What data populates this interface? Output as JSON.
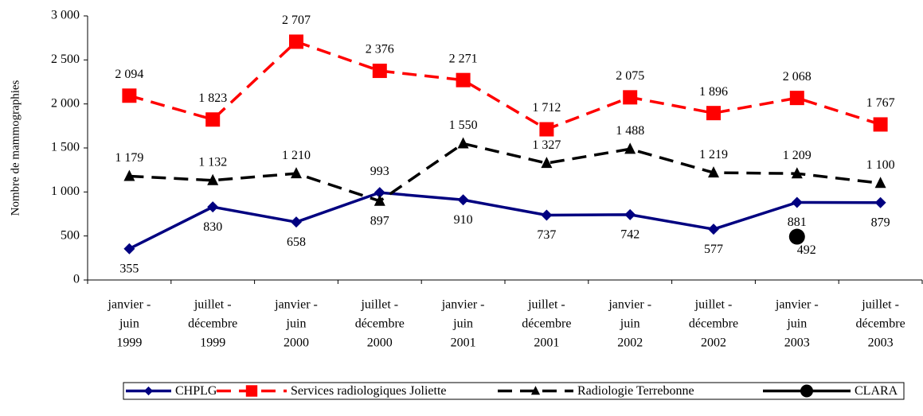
{
  "chart_data": {
    "type": "line",
    "y_label": "Nombre de mammographies",
    "categories": [
      [
        "janvier -",
        "juin",
        "1999"
      ],
      [
        "juillet -",
        "décembre",
        "1999"
      ],
      [
        "janvier -",
        "juin",
        "2000"
      ],
      [
        "juillet -",
        "décembre",
        "2000"
      ],
      [
        "janvier -",
        "juin",
        "2001"
      ],
      [
        "juillet -",
        "décembre",
        "2001"
      ],
      [
        "janvier -",
        "juin",
        "2002"
      ],
      [
        "juillet -",
        "décembre",
        "2002"
      ],
      [
        "janvier -",
        "juin",
        "2003"
      ],
      [
        "juillet -",
        "décembre",
        "2003"
      ]
    ],
    "ylim": [
      0,
      3000
    ],
    "yticks": [
      0,
      500,
      {
        "value": 1000,
        "label": "1 000"
      },
      {
        "value": 1500,
        "label": "1 500"
      },
      {
        "value": 2000,
        "label": "2 000"
      },
      {
        "value": 2500,
        "label": "2 500"
      },
      {
        "value": 3000,
        "label": "3 000"
      }
    ],
    "series": [
      {
        "name": "CHPLG",
        "color": "#000080",
        "marker": "diamond",
        "dash": "solid",
        "values": [
          355,
          830,
          658,
          993,
          910,
          737,
          742,
          577,
          881,
          879
        ],
        "value_labels": [
          "355",
          "830",
          "658",
          "993",
          "910",
          "737",
          "742",
          "577",
          "881",
          "879"
        ]
      },
      {
        "name": "Services radiologiques Joliette",
        "color": "#ff0000",
        "marker": "square",
        "dash": "dashed",
        "values": [
          2094,
          1823,
          2707,
          2376,
          2271,
          1712,
          2075,
          1896,
          2068,
          1767
        ],
        "value_labels": [
          "2 094",
          "1 823",
          "2 707",
          "2 376",
          "2 271",
          "1 712",
          "2 075",
          "1 896",
          "2 068",
          "1 767"
        ]
      },
      {
        "name": "Radiologie Terrebonne",
        "color": "#000000",
        "marker": "triangle",
        "dash": "dashed",
        "values": [
          1179,
          1132,
          1210,
          897,
          1550,
          1327,
          1488,
          1219,
          1209,
          1100
        ],
        "value_labels": [
          "1 179",
          "1 132",
          "1 210",
          "897",
          "1 550",
          "1 327",
          "1 488",
          "1 219",
          "1 209",
          "1 100"
        ]
      },
      {
        "name": "CLARA",
        "color": "#000000",
        "marker": "circle",
        "dash": "solid",
        "values": [
          null,
          null,
          null,
          null,
          null,
          null,
          null,
          null,
          492,
          null
        ],
        "value_labels": [
          null,
          null,
          null,
          null,
          null,
          null,
          null,
          null,
          "492",
          null
        ]
      }
    ]
  }
}
